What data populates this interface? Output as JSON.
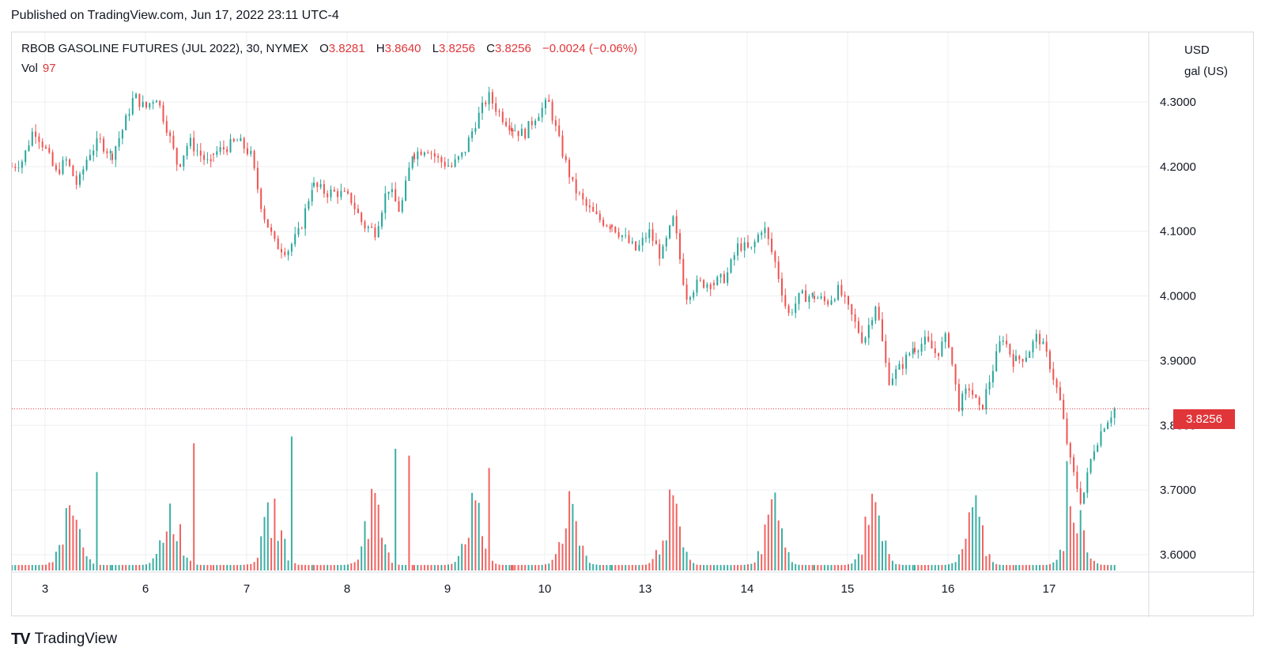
{
  "header": {
    "published": "Published on TradingView.com, Jun 17, 2022 23:11 UTC-4"
  },
  "legend": {
    "symbol": "RBOB GASOLINE FUTURES (JUL 2022), 30, NYMEX",
    "open_label": "O",
    "open": "3.8281",
    "high_label": "H",
    "high": "3.8640",
    "low_label": "L",
    "low": "3.8256",
    "close_label": "C",
    "close": "3.8256",
    "change": "−0.0024 (−0.06%)",
    "vol_label": "Vol",
    "vol": "97"
  },
  "axis": {
    "currency": "USD",
    "unit": "gal (US)"
  },
  "last_price_tag": "3.8256",
  "footer": {
    "logo": "TV",
    "brand": "TradingView"
  },
  "colors": {
    "up": "#26a69a",
    "down": "#ef5350",
    "up_vol": "#26a69a",
    "down_vol": "#ef5350",
    "grid": "#eeeff2",
    "tag": "#e0363a"
  },
  "chart_data": {
    "type": "candlestick",
    "x_ticks": [
      "3",
      "6",
      "7",
      "8",
      "9",
      "10",
      "13",
      "14",
      "15",
      "16",
      "17"
    ],
    "y_ticks": [
      "4.3000",
      "4.2000",
      "4.1000",
      "4.0000",
      "3.9000",
      "3.8000",
      "3.7000",
      "3.6000"
    ],
    "ylim": [
      3.575,
      4.335
    ],
    "last_price": 3.8256,
    "sessions": [
      {
        "day": "3",
        "open": 4.2,
        "path": [
          4.21,
          4.26,
          4.23,
          4.19,
          4.21,
          4.17,
          4.22,
          4.24,
          4.22
        ]
      },
      {
        "day": "6",
        "open": 4.22,
        "path": [
          4.26,
          4.31,
          4.29,
          4.31,
          4.26,
          4.2,
          4.24,
          4.22,
          4.2
        ]
      },
      {
        "day": "7",
        "open": 4.22,
        "path": [
          4.23,
          4.24,
          4.22,
          4.13,
          4.08,
          4.07,
          4.1,
          4.17
        ]
      },
      {
        "day": "8",
        "open": 4.17,
        "path": [
          4.16,
          4.16,
          4.15,
          4.11,
          4.1,
          4.17,
          4.13,
          4.22
        ]
      },
      {
        "day": "9",
        "open": 4.22,
        "path": [
          4.23,
          4.21,
          4.2,
          4.22,
          4.27,
          4.31,
          4.28,
          4.26
        ]
      },
      {
        "day": "10",
        "open": 4.26,
        "path": [
          4.25,
          4.28,
          4.3,
          4.23,
          4.17,
          4.14,
          4.12,
          4.11
        ]
      },
      {
        "day": "13",
        "open": 4.11,
        "path": [
          4.09,
          4.07,
          4.1,
          4.06,
          4.12,
          4.0,
          4.02,
          4.02
        ]
      },
      {
        "day": "14",
        "open": 4.02,
        "path": [
          4.03,
          4.08,
          4.07,
          4.11,
          4.05,
          3.97,
          4.0,
          4.0
        ]
      },
      {
        "day": "15",
        "open": 4.0,
        "path": [
          3.99,
          4.01,
          3.97,
          3.93,
          3.99,
          3.87,
          3.89,
          3.92
        ]
      },
      {
        "day": "16",
        "open": 3.92,
        "path": [
          3.93,
          3.91,
          3.94,
          3.83,
          3.86,
          3.82,
          3.88,
          3.94,
          3.9
        ]
      },
      {
        "day": "17",
        "open": 3.9,
        "path": [
          3.91,
          3.94,
          3.9,
          3.84,
          3.74,
          3.68,
          3.76,
          3.8,
          3.8256
        ]
      }
    ],
    "volume_spikes": [
      {
        "day": "3",
        "at": 0.85,
        "value": 0.72,
        "dir": "up"
      },
      {
        "day": "6",
        "at": 0.82,
        "value": 0.93,
        "dir": "down"
      },
      {
        "day": "7",
        "at": 0.78,
        "value": 0.98,
        "dir": "up"
      },
      {
        "day": "8",
        "at": 0.82,
        "value": 0.89,
        "dir": "up"
      },
      {
        "day": "8",
        "at": 0.97,
        "value": 0.84,
        "dir": "down"
      },
      {
        "day": "9",
        "at": 0.77,
        "value": 0.75,
        "dir": "down"
      },
      {
        "day": "10",
        "at": 0.6,
        "value": 0.58,
        "dir": "down"
      },
      {
        "day": "13",
        "at": 0.62,
        "value": 0.55,
        "dir": "down"
      },
      {
        "day": "14",
        "at": 0.62,
        "value": 0.57,
        "dir": "up"
      },
      {
        "day": "15",
        "at": 0.62,
        "value": 0.5,
        "dir": "down"
      },
      {
        "day": "16",
        "at": 0.62,
        "value": 0.55,
        "dir": "up"
      },
      {
        "day": "17",
        "at": 0.52,
        "value": 0.8,
        "dir": "up"
      }
    ]
  }
}
